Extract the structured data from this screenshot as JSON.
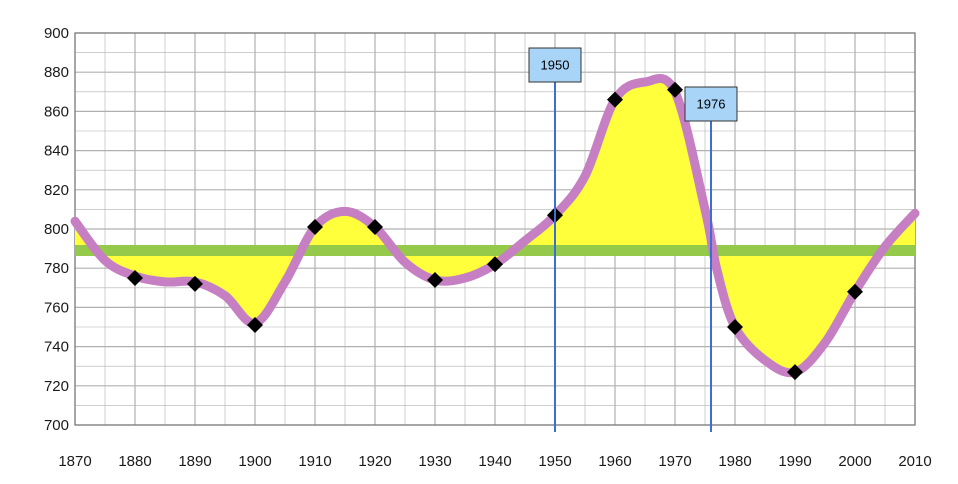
{
  "chart_data": {
    "type": "line",
    "title": "",
    "xlabel": "",
    "ylabel": "",
    "xlim": [
      1870,
      2010
    ],
    "ylim": [
      700,
      900
    ],
    "x_ticks": [
      "1870",
      "1880",
      "1890",
      "1900",
      "1910",
      "1920",
      "1930",
      "1940",
      "1950",
      "1960",
      "1970",
      "1980",
      "1990",
      "2000",
      "2010"
    ],
    "y_ticks": [
      "700",
      "720",
      "740",
      "760",
      "780",
      "800",
      "820",
      "840",
      "860",
      "880",
      "900"
    ],
    "grid": true,
    "series": [
      {
        "name": "values",
        "x": [
          1880,
          1890,
          1900,
          1910,
          1920,
          1930,
          1940,
          1950,
          1960,
          1970,
          1980,
          1990,
          2000
        ],
        "values": [
          775,
          772,
          751,
          801,
          801,
          774,
          782,
          807,
          866,
          871,
          750,
          727,
          768
        ]
      }
    ],
    "curve": {
      "x": [
        1870,
        1875,
        1880,
        1885,
        1890,
        1895,
        1900,
        1905,
        1910,
        1915,
        1920,
        1925,
        1930,
        1935,
        1940,
        1945,
        1950,
        1955,
        1960,
        1965,
        1970,
        1975,
        1977,
        1980,
        1985,
        1990,
        1995,
        2000,
        2005,
        2010
      ],
      "values": [
        804,
        784,
        776,
        773,
        773,
        766,
        752,
        773,
        801,
        809,
        801,
        783,
        774,
        775,
        782,
        794,
        807,
        827,
        866,
        875,
        870,
        810,
        779,
        750,
        733,
        727,
        742,
        768,
        791,
        808
      ]
    },
    "reference_band": {
      "value": 789,
      "color": "#94c94a"
    },
    "vertical_markers": [
      {
        "x": 1950,
        "label": "1950"
      },
      {
        "x": 1976,
        "label": "1976"
      }
    ],
    "colors": {
      "line": "#c77fc3",
      "fill": "#ffff3c",
      "marker": "#000000",
      "vline": "#3b6fd8",
      "callout_bg": "#a8d4f7",
      "grid": "#b0b0b0"
    }
  }
}
